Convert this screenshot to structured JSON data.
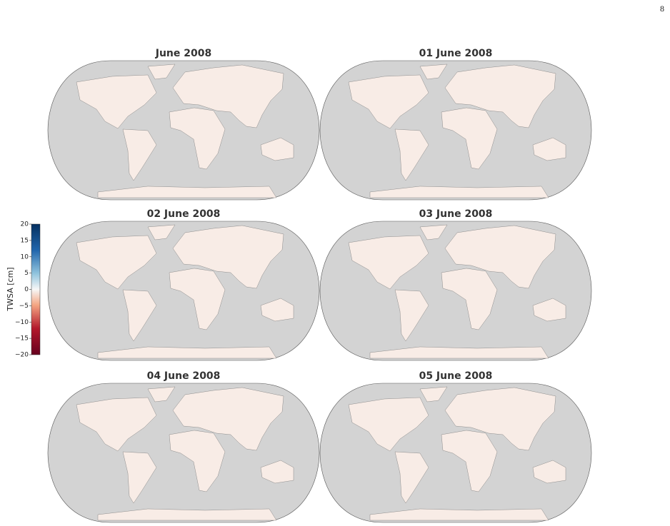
{
  "page_number": "8",
  "colorbar": {
    "label": "TWSA [cm]",
    "lim": [
      -20,
      20
    ],
    "ticks": [
      20,
      15,
      10,
      5,
      0,
      {
        "value": -5,
        "label": "−5"
      },
      {
        "value": -10,
        "label": "−10"
      },
      {
        "value": -15,
        "label": "−15"
      },
      {
        "value": -20,
        "label": "−20"
      }
    ]
  },
  "panels": [
    {
      "title": "June 2008"
    },
    {
      "title": "01 June 2008"
    },
    {
      "title": "02 June 2008"
    },
    {
      "title": "03 June 2008"
    },
    {
      "title": "04 June 2008"
    },
    {
      "title": "05 June 2008"
    }
  ]
}
